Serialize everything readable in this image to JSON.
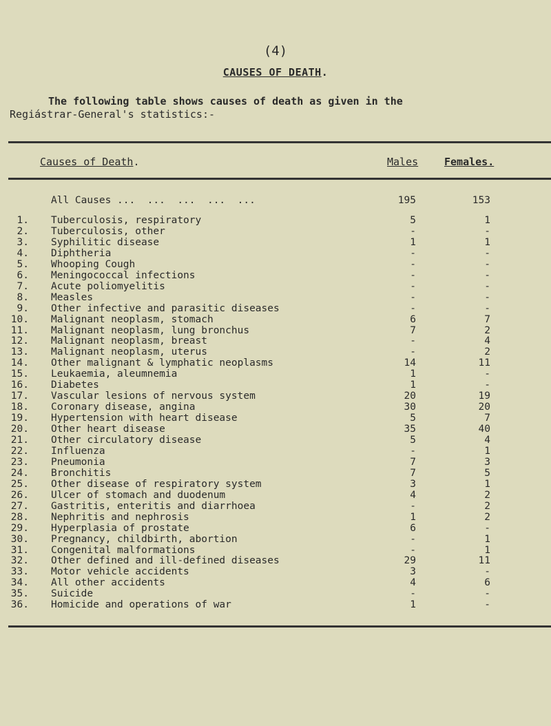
{
  "page_number": "(4)",
  "title": "CAUSES OF DEATH",
  "title_suffix": ".",
  "intro_line1": "The following table shows causes of death as given in the",
  "intro_line2": "Regiástrar-General's statistics:-",
  "table": {
    "headers": {
      "cause": "Causes of Death",
      "cause_suffix": ".",
      "males": "Males",
      "females": "Females."
    },
    "total": {
      "label": "All Causes ...  ...  ...  ...  ...",
      "males": "195",
      "females": "153"
    },
    "rows": [
      {
        "num": "1.",
        "cause": "Tuberculosis, respiratory",
        "males": "5",
        "females": "1"
      },
      {
        "num": "2.",
        "cause": "Tuberculosis, other",
        "males": "-",
        "females": "-"
      },
      {
        "num": "3.",
        "cause": "Syphilitic disease",
        "males": "1",
        "females": "1"
      },
      {
        "num": "4.",
        "cause": "Diphtheria",
        "males": "-",
        "females": "-"
      },
      {
        "num": "5.",
        "cause": "Whooping Cough",
        "males": "-",
        "females": "-"
      },
      {
        "num": "6.",
        "cause": "Meningococcal infections",
        "males": "-",
        "females": "-"
      },
      {
        "num": "7.",
        "cause": "Acute poliomyelitis",
        "males": "-",
        "females": "-"
      },
      {
        "num": "8.",
        "cause": "Measles",
        "males": "-",
        "females": "-"
      },
      {
        "num": "9.",
        "cause": "Other infective and parasitic diseases",
        "males": "-",
        "females": "-"
      },
      {
        "num": "10.",
        "cause": "Malignant neoplasm, stomach",
        "males": "6",
        "females": "7"
      },
      {
        "num": "11.",
        "cause": "Malignant neoplasm, lung bronchus",
        "males": "7",
        "females": "2"
      },
      {
        "num": "12.",
        "cause": "Malignant neoplasm, breast",
        "males": "-",
        "females": "4"
      },
      {
        "num": "13.",
        "cause": "Malignant neoplasm, uterus",
        "males": "-",
        "females": "2"
      },
      {
        "num": "14.",
        "cause": "Other malignant & lymphatic neoplasms",
        "males": "14",
        "females": "11"
      },
      {
        "num": "15.",
        "cause": "Leukaemia, aleumnemia",
        "males": "1",
        "females": "-"
      },
      {
        "num": "16.",
        "cause": "Diabetes",
        "males": "1",
        "females": "-"
      },
      {
        "num": "17.",
        "cause": "Vascular lesions of nervous system",
        "males": "20",
        "females": "19"
      },
      {
        "num": "18.",
        "cause": "Coronary disease, angina",
        "males": "30",
        "females": "20"
      },
      {
        "num": "19.",
        "cause": "Hypertension with heart disease",
        "males": "5",
        "females": "7"
      },
      {
        "num": "20.",
        "cause": "Other heart disease",
        "males": "35",
        "females": "40"
      },
      {
        "num": "21.",
        "cause": "Other circulatory disease",
        "males": "5",
        "females": "4"
      },
      {
        "num": "22.",
        "cause": "Influenza",
        "males": "-",
        "females": "1"
      },
      {
        "num": "23.",
        "cause": "Pneumonia",
        "males": "7",
        "females": "3"
      },
      {
        "num": "24.",
        "cause": "Bronchitis",
        "males": "7",
        "females": "5"
      },
      {
        "num": "25.",
        "cause": "Other disease of respiratory system",
        "males": "3",
        "females": "1"
      },
      {
        "num": "26.",
        "cause": "Ulcer of stomach and duodenum",
        "males": "4",
        "females": "2"
      },
      {
        "num": "27.",
        "cause": "Gastritis, enteritis and diarrhoea",
        "males": "-",
        "females": "2"
      },
      {
        "num": "28.",
        "cause": "Nephritis and nephrosis",
        "males": "1",
        "females": "2"
      },
      {
        "num": "29.",
        "cause": "Hyperplasia of prostate",
        "males": "6",
        "females": "-"
      },
      {
        "num": "30.",
        "cause": "Pregnancy, childbirth, abortion",
        "males": "-",
        "females": "1"
      },
      {
        "num": "31.",
        "cause": "Congenital malformations",
        "males": "-",
        "females": "1"
      },
      {
        "num": "32.",
        "cause": "Other defined and ill-defined diseases",
        "males": "29",
        "females": "11"
      },
      {
        "num": "33.",
        "cause": "Motor vehicle accidents",
        "males": "3",
        "females": "-"
      },
      {
        "num": "34.",
        "cause": "All other accidents",
        "males": "4",
        "females": "6"
      },
      {
        "num": "35.",
        "cause": "Suicide",
        "males": "-",
        "females": "-"
      },
      {
        "num": "36.",
        "cause": "Homicide and operations of war",
        "males": "1",
        "females": "-"
      }
    ]
  }
}
